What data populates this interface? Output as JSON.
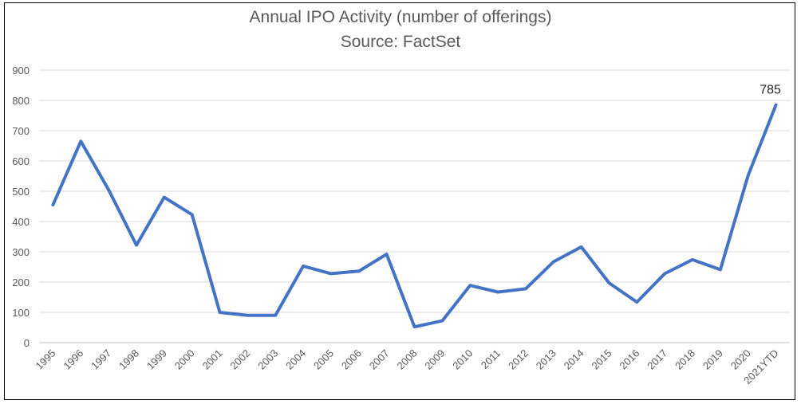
{
  "chart_data": {
    "type": "line",
    "title": "Annual IPO Activity (number of offerings)",
    "subtitle": "Source: FactSet",
    "categories": [
      "1995",
      "1996",
      "1997",
      "1998",
      "1999",
      "2000",
      "2001",
      "2002",
      "2003",
      "2004",
      "2005",
      "2006",
      "2007",
      "2008",
      "2009",
      "2010",
      "2011",
      "2012",
      "2013",
      "2014",
      "2015",
      "2016",
      "2017",
      "2018",
      "2019",
      "2020",
      "2021YTD"
    ],
    "series": [
      {
        "values": [
          455,
          665,
          505,
          322,
          480,
          423,
          100,
          90,
          90,
          253,
          228,
          236,
          292,
          52,
          72,
          189,
          167,
          178,
          267,
          316,
          197,
          134,
          228,
          274,
          241,
          552,
          785
        ]
      }
    ],
    "ylim": [
      0,
      900
    ],
    "yticks": [
      0,
      100,
      200,
      300,
      400,
      500,
      600,
      700,
      800,
      900
    ],
    "grid": true,
    "legend": "none",
    "data_labels": [
      {
        "category": "2021YTD",
        "value": "785"
      }
    ],
    "colors": {
      "line": "#4472C4",
      "grid": "#D9D9D9",
      "axis": "#BFBFBF",
      "text": "#595959"
    }
  }
}
